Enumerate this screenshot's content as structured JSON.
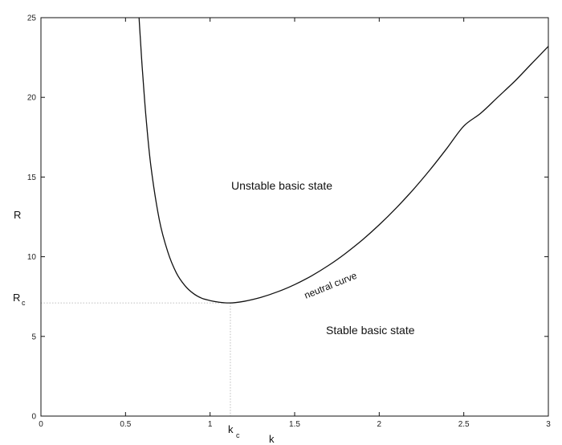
{
  "chart_data": {
    "type": "line",
    "title": "",
    "xlabel": "k",
    "ylabel": "R",
    "xlim": [
      0,
      3
    ],
    "ylim": [
      0,
      25
    ],
    "xticks": [
      0,
      0.5,
      1,
      1.5,
      2,
      2.5,
      3
    ],
    "xtick_labels": [
      "0",
      "0.5",
      "1",
      "1.5",
      "2",
      "2.5",
      "3"
    ],
    "yticks": [
      0,
      5,
      10,
      15,
      20,
      25
    ],
    "ytick_labels": [
      "0",
      "5",
      "10",
      "15",
      "20",
      "25"
    ],
    "grid": false,
    "series": [
      {
        "x": [
          0.58,
          0.59,
          0.6,
          0.62,
          0.65,
          0.7,
          0.75,
          0.8,
          0.85,
          0.9,
          0.95,
          1.0,
          1.05,
          1.1,
          1.15,
          1.2,
          1.3,
          1.4,
          1.5,
          1.6,
          1.7,
          1.8,
          1.9,
          2.0,
          2.1,
          2.2,
          2.3,
          2.4,
          2.5,
          2.6,
          2.7,
          2.8,
          2.9,
          3.0
        ],
        "y": [
          25.0,
          23.3,
          21.7,
          18.9,
          15.7,
          12.3,
          10.3,
          9.0,
          8.2,
          7.7,
          7.4,
          7.25,
          7.15,
          7.1,
          7.12,
          7.2,
          7.45,
          7.8,
          8.25,
          8.8,
          9.45,
          10.2,
          11.05,
          12.0,
          13.05,
          14.2,
          15.45,
          16.8,
          18.2,
          19.0,
          20.0,
          21.0,
          22.1,
          23.2
        ]
      }
    ],
    "critical_point": {
      "k": 1.12,
      "R": 7.1,
      "x_marker_main": "k",
      "x_marker_sub": "c",
      "y_marker_main": "R",
      "y_marker_sub": "c"
    },
    "annotations": {
      "unstable": "Unstable basic state",
      "stable": "Stable basic state",
      "neutral": "neutral curve"
    }
  }
}
